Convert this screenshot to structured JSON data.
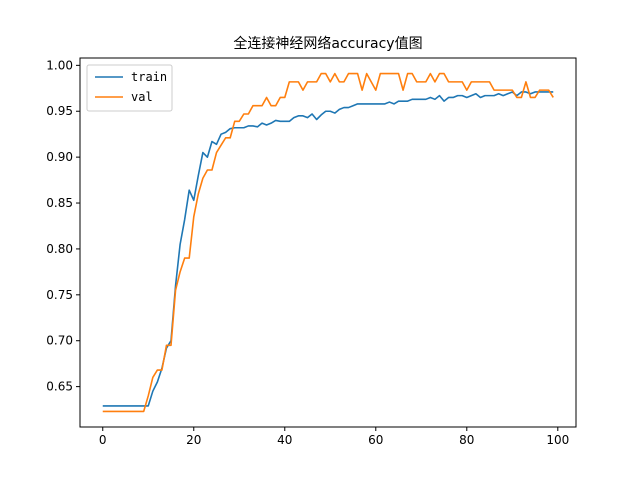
{
  "chart_data": {
    "type": "line",
    "title": "全连接神经网络accuracy值图",
    "xlabel": "",
    "ylabel": "",
    "xlim": [
      -5,
      104
    ],
    "ylim": [
      0.606,
      1.008
    ],
    "xticks": [
      0,
      20,
      40,
      60,
      80,
      100
    ],
    "xtick_labels": [
      "0",
      "20",
      "40",
      "60",
      "80",
      "100"
    ],
    "yticks": [
      0.65,
      0.7,
      0.75,
      0.8,
      0.85,
      0.9,
      0.95,
      1.0
    ],
    "ytick_labels": [
      "0.65",
      "0.70",
      "0.75",
      "0.80",
      "0.85",
      "0.90",
      "0.95",
      "1.00"
    ],
    "grid": false,
    "legend_position": "top-left",
    "x": [
      0,
      1,
      2,
      3,
      4,
      5,
      6,
      7,
      8,
      9,
      10,
      11,
      12,
      13,
      14,
      15,
      16,
      17,
      18,
      19,
      20,
      21,
      22,
      23,
      24,
      25,
      26,
      27,
      28,
      29,
      30,
      31,
      32,
      33,
      34,
      35,
      36,
      37,
      38,
      39,
      40,
      41,
      42,
      43,
      44,
      45,
      46,
      47,
      48,
      49,
      50,
      51,
      52,
      53,
      54,
      55,
      56,
      57,
      58,
      59,
      60,
      61,
      62,
      63,
      64,
      65,
      66,
      67,
      68,
      69,
      70,
      71,
      72,
      73,
      74,
      75,
      76,
      77,
      78,
      79,
      80,
      81,
      82,
      83,
      84,
      85,
      86,
      87,
      88,
      89,
      90,
      91,
      92,
      93,
      94,
      95,
      96,
      97,
      98,
      99
    ],
    "series": [
      {
        "name": "train",
        "color": "#1f77b4",
        "values": [
          0.629,
          0.629,
          0.629,
          0.629,
          0.629,
          0.629,
          0.629,
          0.629,
          0.629,
          0.629,
          0.629,
          0.645,
          0.655,
          0.67,
          0.692,
          0.7,
          0.76,
          0.805,
          0.832,
          0.864,
          0.853,
          0.88,
          0.905,
          0.9,
          0.917,
          0.914,
          0.925,
          0.927,
          0.931,
          0.932,
          0.932,
          0.932,
          0.934,
          0.934,
          0.933,
          0.937,
          0.935,
          0.937,
          0.94,
          0.939,
          0.939,
          0.939,
          0.943,
          0.945,
          0.945,
          0.943,
          0.947,
          0.941,
          0.946,
          0.95,
          0.95,
          0.948,
          0.952,
          0.954,
          0.954,
          0.956,
          0.958,
          0.958,
          0.958,
          0.958,
          0.958,
          0.958,
          0.958,
          0.96,
          0.958,
          0.961,
          0.961,
          0.961,
          0.963,
          0.963,
          0.963,
          0.963,
          0.965,
          0.963,
          0.967,
          0.961,
          0.965,
          0.965,
          0.967,
          0.967,
          0.965,
          0.967,
          0.969,
          0.965,
          0.967,
          0.967,
          0.967,
          0.969,
          0.967,
          0.969,
          0.971,
          0.967,
          0.971,
          0.971,
          0.969,
          0.971,
          0.971,
          0.971,
          0.971,
          0.971
        ]
      },
      {
        "name": "val",
        "color": "#ff7f0e",
        "values": [
          0.623,
          0.623,
          0.623,
          0.623,
          0.623,
          0.623,
          0.623,
          0.623,
          0.623,
          0.623,
          0.64,
          0.66,
          0.668,
          0.668,
          0.695,
          0.695,
          0.755,
          0.775,
          0.79,
          0.79,
          0.835,
          0.86,
          0.877,
          0.886,
          0.886,
          0.905,
          0.913,
          0.921,
          0.921,
          0.939,
          0.939,
          0.947,
          0.947,
          0.956,
          0.956,
          0.956,
          0.965,
          0.956,
          0.956,
          0.965,
          0.965,
          0.982,
          0.982,
          0.982,
          0.973,
          0.982,
          0.982,
          0.982,
          0.991,
          0.991,
          0.982,
          0.991,
          0.982,
          0.982,
          0.991,
          0.991,
          0.991,
          0.973,
          0.991,
          0.982,
          0.973,
          0.991,
          0.991,
          0.991,
          0.991,
          0.991,
          0.973,
          0.991,
          0.991,
          0.982,
          0.982,
          0.982,
          0.991,
          0.982,
          0.991,
          0.991,
          0.982,
          0.982,
          0.982,
          0.982,
          0.973,
          0.982,
          0.982,
          0.982,
          0.982,
          0.982,
          0.973,
          0.973,
          0.973,
          0.973,
          0.973,
          0.965,
          0.965,
          0.982,
          0.965,
          0.965,
          0.973,
          0.973,
          0.973,
          0.965
        ]
      }
    ]
  }
}
